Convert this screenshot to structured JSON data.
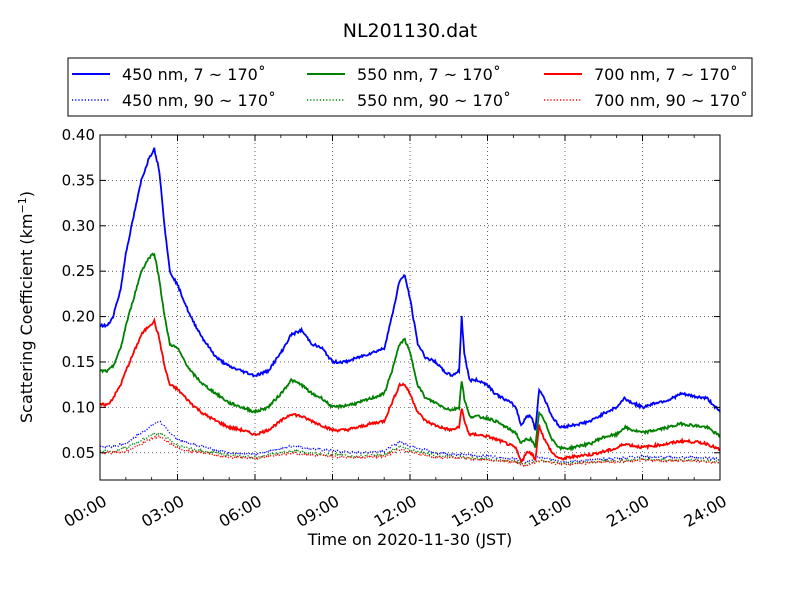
{
  "chart_data": {
    "type": "line",
    "title": "NL201130.dat",
    "xlabel": "Time on 2020-11-30 (JST)",
    "ylabel": "Scattering Coefficient (km",
    "ylabel_exp": "−1",
    "ylabel_close": ")",
    "xlim": [
      0,
      24
    ],
    "ylim": [
      0.02,
      0.4
    ],
    "x_unit": "hours",
    "x_ticks": [
      0,
      3,
      6,
      9,
      12,
      15,
      18,
      21,
      24
    ],
    "x_tick_labels": [
      "00:00",
      "03:00",
      "06:00",
      "09:00",
      "12:00",
      "15:00",
      "18:00",
      "21:00",
      "24:00"
    ],
    "y_ticks": [
      0.05,
      0.1,
      0.15,
      0.2,
      0.25,
      0.3,
      0.35,
      0.4
    ],
    "y_tick_labels": [
      "0.05",
      "0.10",
      "0.15",
      "0.20",
      "0.25",
      "0.30",
      "0.35",
      "0.40"
    ],
    "grid": true,
    "legend_placement": "top, above plot",
    "series": [
      {
        "name": "450 nm, 7 ~ 170˚",
        "color": "#0000ff",
        "style": "solid",
        "x": [
          0,
          0.3,
          0.5,
          0.8,
          1.0,
          1.3,
          1.6,
          1.9,
          2.1,
          2.3,
          2.5,
          2.7,
          3.0,
          3.5,
          4.0,
          4.5,
          5.0,
          5.5,
          6.0,
          6.5,
          7.0,
          7.4,
          7.8,
          8.2,
          8.6,
          9.0,
          9.5,
          10.0,
          10.5,
          11.0,
          11.3,
          11.6,
          11.8,
          12.0,
          12.3,
          12.6,
          13.0,
          13.3,
          13.6,
          13.9,
          14.0,
          14.1,
          14.3,
          14.6,
          15.0,
          15.3,
          15.6,
          15.9,
          16.1,
          16.3,
          16.5,
          16.7,
          16.85,
          17.0,
          17.2,
          17.5,
          17.8,
          18.2,
          18.6,
          19.0,
          19.3,
          19.6,
          20.0,
          20.3,
          20.6,
          21.0,
          21.5,
          22.0,
          22.5,
          23.0,
          23.5,
          24.0
        ],
        "y": [
          0.19,
          0.19,
          0.2,
          0.23,
          0.27,
          0.31,
          0.35,
          0.375,
          0.385,
          0.36,
          0.3,
          0.25,
          0.235,
          0.2,
          0.175,
          0.155,
          0.145,
          0.14,
          0.135,
          0.14,
          0.16,
          0.18,
          0.185,
          0.17,
          0.165,
          0.15,
          0.15,
          0.155,
          0.16,
          0.165,
          0.2,
          0.24,
          0.245,
          0.22,
          0.17,
          0.155,
          0.15,
          0.14,
          0.135,
          0.14,
          0.2,
          0.16,
          0.13,
          0.13,
          0.125,
          0.115,
          0.11,
          0.105,
          0.1,
          0.08,
          0.09,
          0.09,
          0.075,
          0.12,
          0.11,
          0.09,
          0.078,
          0.08,
          0.082,
          0.085,
          0.09,
          0.095,
          0.1,
          0.11,
          0.105,
          0.1,
          0.105,
          0.108,
          0.115,
          0.112,
          0.11,
          0.095
        ]
      },
      {
        "name": "550 nm, 7 ~ 170˚",
        "color": "#008000",
        "style": "solid",
        "x": [
          0,
          0.3,
          0.5,
          0.8,
          1.0,
          1.3,
          1.6,
          1.9,
          2.1,
          2.3,
          2.5,
          2.7,
          3.0,
          3.5,
          4.0,
          4.5,
          5.0,
          5.5,
          6.0,
          6.5,
          7.0,
          7.4,
          7.8,
          8.2,
          8.6,
          9.0,
          9.5,
          10.0,
          10.5,
          11.0,
          11.3,
          11.6,
          11.8,
          12.0,
          12.3,
          12.6,
          13.0,
          13.3,
          13.6,
          13.9,
          14.0,
          14.1,
          14.3,
          14.6,
          15.0,
          15.3,
          15.6,
          15.9,
          16.1,
          16.3,
          16.5,
          16.7,
          16.85,
          17.0,
          17.2,
          17.5,
          17.8,
          18.2,
          18.6,
          19.0,
          19.3,
          19.6,
          20.0,
          20.3,
          20.6,
          21.0,
          21.5,
          22.0,
          22.5,
          23.0,
          23.5,
          24.0
        ],
        "y": [
          0.14,
          0.14,
          0.145,
          0.165,
          0.19,
          0.22,
          0.25,
          0.265,
          0.27,
          0.24,
          0.2,
          0.17,
          0.165,
          0.14,
          0.125,
          0.115,
          0.105,
          0.1,
          0.095,
          0.1,
          0.115,
          0.13,
          0.125,
          0.115,
          0.11,
          0.1,
          0.102,
          0.105,
          0.11,
          0.115,
          0.14,
          0.17,
          0.175,
          0.16,
          0.125,
          0.11,
          0.105,
          0.1,
          0.097,
          0.1,
          0.13,
          0.11,
          0.09,
          0.09,
          0.088,
          0.085,
          0.08,
          0.075,
          0.072,
          0.06,
          0.065,
          0.065,
          0.055,
          0.095,
          0.085,
          0.065,
          0.055,
          0.055,
          0.058,
          0.06,
          0.065,
          0.068,
          0.07,
          0.078,
          0.075,
          0.072,
          0.075,
          0.078,
          0.082,
          0.08,
          0.078,
          0.068
        ]
      },
      {
        "name": "700 nm, 7 ~ 170˚",
        "color": "#ff0000",
        "style": "solid",
        "x": [
          0,
          0.3,
          0.5,
          0.8,
          1.0,
          1.3,
          1.6,
          1.9,
          2.1,
          2.3,
          2.5,
          2.7,
          3.0,
          3.5,
          4.0,
          4.5,
          5.0,
          5.5,
          6.0,
          6.5,
          7.0,
          7.4,
          7.8,
          8.2,
          8.6,
          9.0,
          9.5,
          10.0,
          10.5,
          11.0,
          11.3,
          11.6,
          11.8,
          12.0,
          12.3,
          12.6,
          13.0,
          13.3,
          13.6,
          13.9,
          14.0,
          14.1,
          14.3,
          14.6,
          15.0,
          15.3,
          15.6,
          15.9,
          16.1,
          16.3,
          16.5,
          16.7,
          16.85,
          17.0,
          17.2,
          17.5,
          17.8,
          18.2,
          18.6,
          19.0,
          19.3,
          19.6,
          20.0,
          20.3,
          20.6,
          21.0,
          21.5,
          22.0,
          22.5,
          23.0,
          23.5,
          24.0
        ],
        "y": [
          0.103,
          0.103,
          0.11,
          0.125,
          0.14,
          0.16,
          0.18,
          0.19,
          0.195,
          0.175,
          0.145,
          0.125,
          0.12,
          0.105,
          0.093,
          0.085,
          0.078,
          0.075,
          0.07,
          0.075,
          0.085,
          0.093,
          0.09,
          0.085,
          0.08,
          0.075,
          0.075,
          0.078,
          0.082,
          0.085,
          0.105,
          0.125,
          0.125,
          0.115,
          0.095,
          0.085,
          0.08,
          0.077,
          0.075,
          0.078,
          0.1,
          0.085,
          0.07,
          0.07,
          0.068,
          0.065,
          0.062,
          0.058,
          0.055,
          0.04,
          0.05,
          0.05,
          0.042,
          0.08,
          0.065,
          0.05,
          0.043,
          0.045,
          0.047,
          0.048,
          0.05,
          0.052,
          0.055,
          0.06,
          0.058,
          0.056,
          0.058,
          0.06,
          0.063,
          0.062,
          0.06,
          0.053
        ]
      },
      {
        "name": "450 nm, 90 ~ 170˚",
        "color": "#0000ff",
        "style": "dotted",
        "x": [
          0,
          0.5,
          1.0,
          1.5,
          2.0,
          2.3,
          2.6,
          3.0,
          3.5,
          4.0,
          5.0,
          6.0,
          7.0,
          7.5,
          8.0,
          9.0,
          10.0,
          11.0,
          11.6,
          12.0,
          13.0,
          14.0,
          15.0,
          16.0,
          16.5,
          17.0,
          18.0,
          19.0,
          20.0,
          21.0,
          22.0,
          23.0,
          24.0
        ],
        "y": [
          0.057,
          0.057,
          0.06,
          0.07,
          0.08,
          0.085,
          0.075,
          0.065,
          0.06,
          0.057,
          0.05,
          0.048,
          0.055,
          0.058,
          0.055,
          0.052,
          0.05,
          0.052,
          0.062,
          0.058,
          0.05,
          0.048,
          0.046,
          0.044,
          0.04,
          0.045,
          0.04,
          0.042,
          0.044,
          0.046,
          0.045,
          0.045,
          0.043
        ]
      },
      {
        "name": "550 nm, 90 ~ 170˚",
        "color": "#008000",
        "style": "dotted",
        "x": [
          0,
          0.5,
          1.0,
          1.5,
          2.0,
          2.3,
          2.6,
          3.0,
          3.5,
          4.0,
          5.0,
          6.0,
          7.0,
          7.5,
          8.0,
          9.0,
          10.0,
          11.0,
          11.6,
          12.0,
          13.0,
          14.0,
          15.0,
          16.0,
          16.5,
          17.0,
          18.0,
          19.0,
          20.0,
          21.0,
          22.0,
          23.0,
          24.0
        ],
        "y": [
          0.052,
          0.052,
          0.055,
          0.062,
          0.07,
          0.072,
          0.066,
          0.058,
          0.054,
          0.052,
          0.047,
          0.045,
          0.05,
          0.052,
          0.05,
          0.048,
          0.046,
          0.048,
          0.057,
          0.053,
          0.047,
          0.045,
          0.043,
          0.041,
          0.037,
          0.042,
          0.038,
          0.04,
          0.041,
          0.043,
          0.042,
          0.042,
          0.04
        ]
      },
      {
        "name": "700 nm, 90 ~ 170˚",
        "color": "#ff0000",
        "style": "dotted",
        "x": [
          0,
          0.5,
          1.0,
          1.5,
          2.0,
          2.3,
          2.6,
          3.0,
          3.5,
          4.0,
          5.0,
          6.0,
          7.0,
          7.5,
          8.0,
          9.0,
          10.0,
          11.0,
          11.6,
          12.0,
          13.0,
          14.0,
          15.0,
          16.0,
          16.5,
          17.0,
          18.0,
          19.0,
          20.0,
          21.0,
          22.0,
          23.0,
          24.0
        ],
        "y": [
          0.05,
          0.05,
          0.052,
          0.058,
          0.066,
          0.068,
          0.062,
          0.055,
          0.051,
          0.05,
          0.045,
          0.044,
          0.048,
          0.05,
          0.048,
          0.046,
          0.045,
          0.046,
          0.054,
          0.051,
          0.045,
          0.044,
          0.042,
          0.04,
          0.036,
          0.041,
          0.037,
          0.039,
          0.04,
          0.042,
          0.041,
          0.041,
          0.039
        ]
      }
    ]
  }
}
